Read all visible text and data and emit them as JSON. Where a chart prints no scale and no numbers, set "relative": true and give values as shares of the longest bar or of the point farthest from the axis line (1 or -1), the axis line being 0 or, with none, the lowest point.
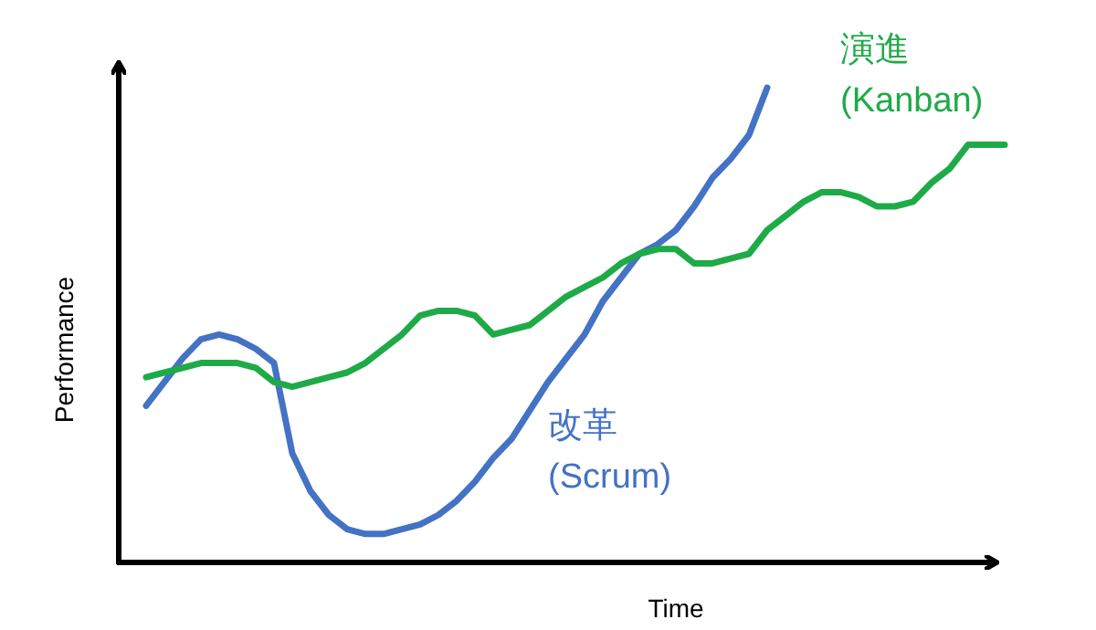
{
  "chart_data": {
    "type": "line",
    "relative": true,
    "xlabel": "Time",
    "ylabel": "Performance",
    "grid": false,
    "marker": "none",
    "line_style": "solid",
    "categories": [
      null,
      null,
      null,
      null,
      null,
      null,
      null,
      null,
      null,
      null,
      null,
      null,
      null,
      null,
      null,
      null,
      null,
      null,
      null,
      null,
      null,
      null,
      null,
      null,
      null,
      null,
      null,
      null,
      null,
      null,
      null,
      null,
      null,
      null,
      null,
      null,
      null,
      null,
      null,
      null,
      null,
      null,
      null,
      null,
      null,
      null,
      null,
      null
    ],
    "series": [
      {
        "name": "改革\n(Scrum)",
        "color": "#4472c4",
        "values": [
          0.33,
          0.38,
          0.43,
          0.47,
          0.48,
          0.47,
          0.45,
          0.42,
          0.23,
          0.15,
          0.1,
          0.07,
          0.06,
          0.06,
          0.07,
          0.08,
          0.1,
          0.13,
          0.17,
          0.22,
          0.26,
          0.32,
          0.38,
          0.43,
          0.48,
          0.55,
          0.6,
          0.65,
          0.67,
          0.7,
          0.75,
          0.81,
          0.85,
          0.9,
          1.0,
          null,
          null,
          null,
          null,
          null,
          null,
          null,
          null,
          null,
          null,
          null,
          null,
          null
        ]
      },
      {
        "name": "演進\n(Kanban)",
        "color": "#1faa48",
        "values": [
          0.39,
          0.4,
          0.41,
          0.42,
          0.42,
          0.42,
          0.41,
          0.38,
          0.37,
          0.38,
          0.39,
          0.4,
          0.42,
          0.45,
          0.48,
          0.52,
          0.53,
          0.53,
          0.52,
          0.48,
          0.49,
          0.5,
          0.53,
          0.56,
          0.58,
          0.6,
          0.63,
          0.65,
          0.66,
          0.66,
          0.63,
          0.63,
          0.64,
          0.65,
          0.7,
          0.73,
          0.76,
          0.78,
          0.78,
          0.77,
          0.75,
          0.75,
          0.76,
          0.8,
          0.83,
          0.88,
          0.88,
          0.88
        ]
      }
    ]
  }
}
